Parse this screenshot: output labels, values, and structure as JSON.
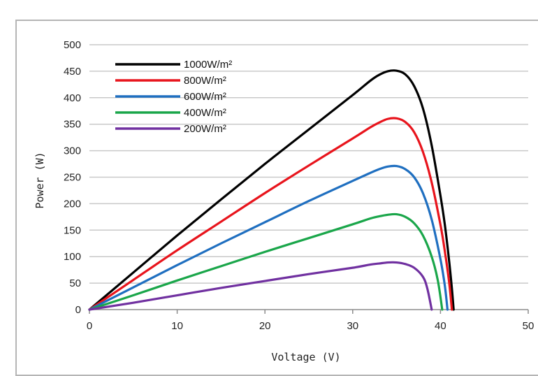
{
  "chart_data": {
    "type": "line",
    "title": "",
    "xlabel": "Voltage (V)",
    "ylabel": "Power (W)",
    "xlim": [
      0,
      50
    ],
    "ylim": [
      0,
      500
    ],
    "xticks": [
      "0",
      "10",
      "20",
      "30",
      "40",
      "50"
    ],
    "yticks": [
      "0",
      "50",
      "100",
      "150",
      "200",
      "250",
      "300",
      "350",
      "400",
      "450",
      "500"
    ],
    "grid": "horizontal",
    "legend_position": "top-left",
    "series": [
      {
        "name": "1000W/m²",
        "color": "#000000",
        "x": [
          0,
          5,
          10,
          15,
          20,
          25,
          30,
          32,
          33,
          34,
          35,
          36,
          37,
          38,
          39,
          40,
          40.5,
          41,
          41.3,
          41.5
        ],
        "y": [
          0,
          70,
          140,
          208,
          275,
          340,
          405,
          432,
          443,
          450,
          451,
          444,
          422,
          380,
          310,
          215,
          160,
          90,
          40,
          0
        ]
      },
      {
        "name": "800W/m²",
        "color": "#e8141c",
        "x": [
          0,
          5,
          10,
          15,
          20,
          25,
          30,
          32,
          33,
          34,
          35,
          36,
          37,
          38,
          39,
          40,
          40.5,
          41,
          41.3
        ],
        "y": [
          0,
          56,
          112,
          166,
          220,
          272,
          323,
          344,
          353,
          360,
          361,
          354,
          335,
          298,
          240,
          160,
          110,
          50,
          0
        ]
      },
      {
        "name": "600W/m²",
        "color": "#1f6fc0",
        "x": [
          0,
          5,
          10,
          15,
          20,
          25,
          30,
          32,
          33,
          34,
          35,
          36,
          37,
          38,
          39,
          40,
          40.5,
          40.8
        ],
        "y": [
          0,
          42,
          84,
          125,
          165,
          205,
          243,
          258,
          265,
          270,
          271,
          265,
          250,
          220,
          170,
          95,
          45,
          0
        ]
      },
      {
        "name": "400W/m²",
        "color": "#1aa64a",
        "x": [
          0,
          5,
          10,
          15,
          20,
          25,
          30,
          32,
          33,
          34,
          35,
          36,
          37,
          38,
          39,
          39.7,
          40.2
        ],
        "y": [
          0,
          27,
          55,
          82,
          109,
          135,
          161,
          172,
          176,
          179,
          180,
          175,
          163,
          140,
          100,
          55,
          0
        ]
      },
      {
        "name": "200W/m²",
        "color": "#7030a0",
        "x": [
          0,
          5,
          10,
          15,
          20,
          25,
          30,
          32,
          33,
          34,
          35,
          36,
          37,
          38,
          38.5,
          39
        ],
        "y": [
          0,
          13,
          27,
          41,
          54,
          67,
          79,
          85,
          87,
          89,
          89,
          86,
          79,
          62,
          40,
          0
        ]
      }
    ]
  }
}
